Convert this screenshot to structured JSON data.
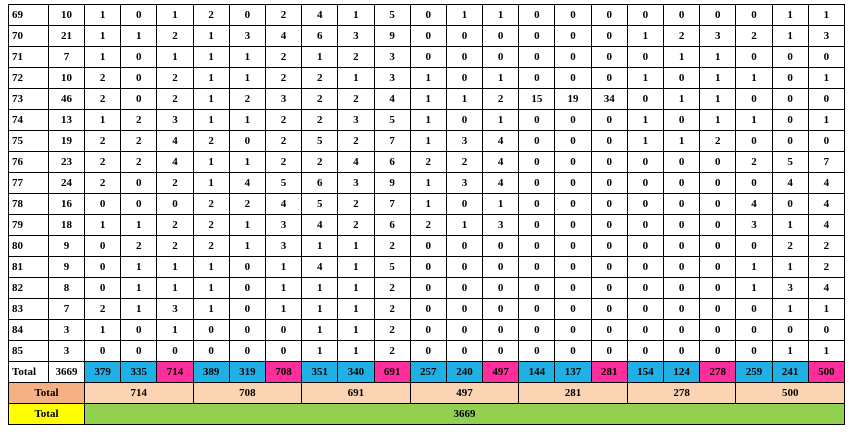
{
  "table": {
    "rows": [
      [
        69,
        10,
        1,
        0,
        1,
        2,
        0,
        2,
        4,
        1,
        5,
        0,
        1,
        1,
        0,
        0,
        0,
        0,
        0,
        0,
        0,
        1,
        1
      ],
      [
        70,
        21,
        1,
        1,
        2,
        1,
        3,
        4,
        6,
        3,
        9,
        0,
        0,
        0,
        0,
        0,
        0,
        1,
        2,
        3,
        2,
        1,
        3
      ],
      [
        71,
        7,
        1,
        0,
        1,
        1,
        1,
        2,
        1,
        2,
        3,
        0,
        0,
        0,
        0,
        0,
        0,
        0,
        1,
        1,
        0,
        0,
        0
      ],
      [
        72,
        10,
        2,
        0,
        2,
        1,
        1,
        2,
        2,
        1,
        3,
        1,
        0,
        1,
        0,
        0,
        0,
        1,
        0,
        1,
        1,
        0,
        1
      ],
      [
        73,
        46,
        2,
        0,
        2,
        1,
        2,
        3,
        2,
        2,
        4,
        1,
        1,
        2,
        15,
        19,
        34,
        0,
        1,
        1,
        0,
        0,
        0
      ],
      [
        74,
        13,
        1,
        2,
        3,
        1,
        1,
        2,
        2,
        3,
        5,
        1,
        0,
        1,
        0,
        0,
        0,
        1,
        0,
        1,
        1,
        0,
        1
      ],
      [
        75,
        19,
        2,
        2,
        4,
        2,
        0,
        2,
        5,
        2,
        7,
        1,
        3,
        4,
        0,
        0,
        0,
        1,
        1,
        2,
        0,
        0,
        0
      ],
      [
        76,
        23,
        2,
        2,
        4,
        1,
        1,
        2,
        2,
        4,
        6,
        2,
        2,
        4,
        0,
        0,
        0,
        0,
        0,
        0,
        2,
        5,
        7
      ],
      [
        77,
        24,
        2,
        0,
        2,
        1,
        4,
        5,
        6,
        3,
        9,
        1,
        3,
        4,
        0,
        0,
        0,
        0,
        0,
        0,
        0,
        4,
        4
      ],
      [
        78,
        16,
        0,
        0,
        0,
        2,
        2,
        4,
        5,
        2,
        7,
        1,
        0,
        1,
        0,
        0,
        0,
        0,
        0,
        0,
        4,
        0,
        4
      ],
      [
        79,
        18,
        1,
        1,
        2,
        2,
        1,
        3,
        4,
        2,
        6,
        2,
        1,
        3,
        0,
        0,
        0,
        0,
        0,
        0,
        3,
        1,
        4
      ],
      [
        80,
        9,
        0,
        2,
        2,
        2,
        1,
        3,
        1,
        1,
        2,
        0,
        0,
        0,
        0,
        0,
        0,
        0,
        0,
        0,
        0,
        2,
        2
      ],
      [
        81,
        9,
        0,
        1,
        1,
        1,
        0,
        1,
        4,
        1,
        5,
        0,
        0,
        0,
        0,
        0,
        0,
        0,
        0,
        0,
        1,
        1,
        2
      ],
      [
        82,
        8,
        0,
        1,
        1,
        1,
        0,
        1,
        1,
        1,
        2,
        0,
        0,
        0,
        0,
        0,
        0,
        0,
        0,
        0,
        1,
        3,
        4
      ],
      [
        83,
        7,
        2,
        1,
        3,
        1,
        0,
        1,
        1,
        1,
        2,
        0,
        0,
        0,
        0,
        0,
        0,
        0,
        0,
        0,
        0,
        1,
        1
      ],
      [
        84,
        3,
        1,
        0,
        1,
        0,
        0,
        0,
        1,
        1,
        2,
        0,
        0,
        0,
        0,
        0,
        0,
        0,
        0,
        0,
        0,
        0,
        0
      ],
      [
        85,
        3,
        0,
        0,
        0,
        0,
        0,
        0,
        1,
        1,
        2,
        0,
        0,
        0,
        0,
        0,
        0,
        0,
        0,
        0,
        0,
        1,
        1
      ]
    ],
    "total_row": [
      "Total",
      3669,
      379,
      335,
      714,
      389,
      319,
      708,
      351,
      340,
      691,
      257,
      240,
      497,
      144,
      137,
      281,
      154,
      124,
      278,
      259,
      241,
      500
    ],
    "group_total_row": {
      "label": "Total",
      "values": [
        714,
        708,
        691,
        497,
        281,
        278,
        500
      ]
    },
    "grand_total_row": {
      "label": "Total",
      "value": 3669
    }
  }
}
